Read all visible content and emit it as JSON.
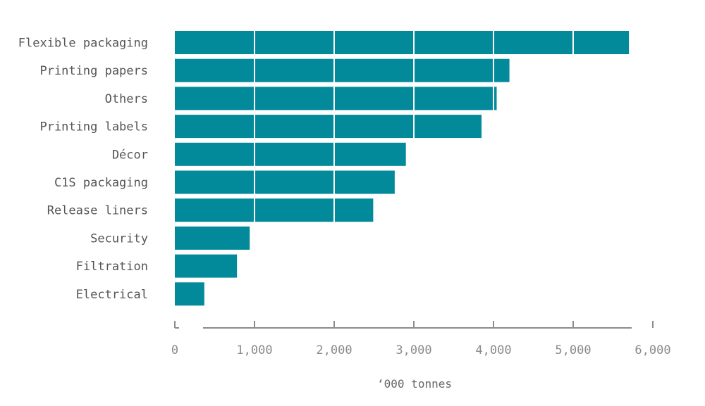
{
  "chart_data": {
    "type": "bar",
    "orientation": "horizontal",
    "title": "",
    "xlabel": "‘000 tonnes",
    "ylabel": "",
    "categories": [
      "Flexible packaging",
      "Printing papers",
      "Others",
      "Printing labels",
      "Décor",
      "C1S packaging",
      "Release liners",
      "Security",
      "Filtration",
      "Electrical"
    ],
    "values": [
      5700,
      4200,
      4040,
      3850,
      2900,
      2760,
      2490,
      940,
      780,
      370
    ],
    "xlim": [
      0,
      6000
    ],
    "xticks": [
      0,
      1000,
      2000,
      3000,
      4000,
      5000,
      6000
    ],
    "xtick_labels": [
      "0",
      "1,000",
      "2,000",
      "3,000",
      "4,000",
      "5,000",
      "6,000"
    ],
    "grid": "vertical white lines across bars",
    "legend": "none",
    "colors": {
      "bar": "#028a9b",
      "axis": "#8c8c8c",
      "grid": "#ffffff"
    }
  }
}
